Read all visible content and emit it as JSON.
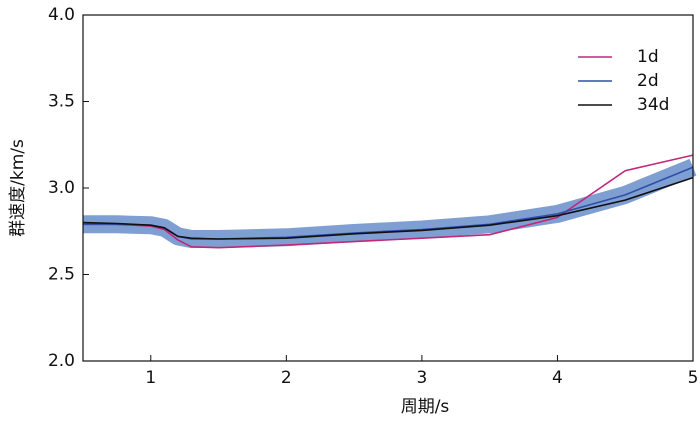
{
  "chart_data": {
    "type": "line",
    "x_label": "周期/s",
    "y_label": "群速度/km/s",
    "x": [
      0.5,
      0.75,
      1.0,
      1.1,
      1.2,
      1.3,
      1.5,
      2.0,
      2.5,
      3.0,
      3.5,
      4.0,
      4.5,
      5.0
    ],
    "series": [
      {
        "name": "1d",
        "color": "#c0287a",
        "values": [
          2.79,
          2.79,
          2.78,
          2.76,
          2.7,
          2.66,
          2.655,
          2.67,
          2.69,
          2.71,
          2.73,
          2.83,
          3.1,
          3.19
        ]
      },
      {
        "name": "2d",
        "color": "#2f4fa8",
        "values": [
          2.79,
          2.79,
          2.785,
          2.77,
          2.72,
          2.705,
          2.705,
          2.715,
          2.74,
          2.76,
          2.79,
          2.85,
          2.96,
          3.12
        ]
      },
      {
        "name": "34d",
        "color": "#111111",
        "values": [
          2.8,
          2.795,
          2.785,
          2.77,
          2.72,
          2.71,
          2.705,
          2.71,
          2.735,
          2.755,
          2.785,
          2.84,
          2.93,
          3.06
        ]
      }
    ],
    "xlim": [
      0.5,
      5
    ],
    "xticks": [
      1,
      2,
      3,
      4,
      5
    ],
    "ylim": [
      2.0,
      4.0
    ],
    "yticks": [
      {
        "value": 2.0,
        "label": "2.0"
      },
      {
        "value": 2.5,
        "label": "2.5"
      },
      {
        "value": 3.0,
        "label": "3.0"
      },
      {
        "value": 3.5,
        "label": "3.5"
      },
      {
        "value": 4.0,
        "label": "4.0"
      }
    ],
    "legend": "upper right"
  }
}
